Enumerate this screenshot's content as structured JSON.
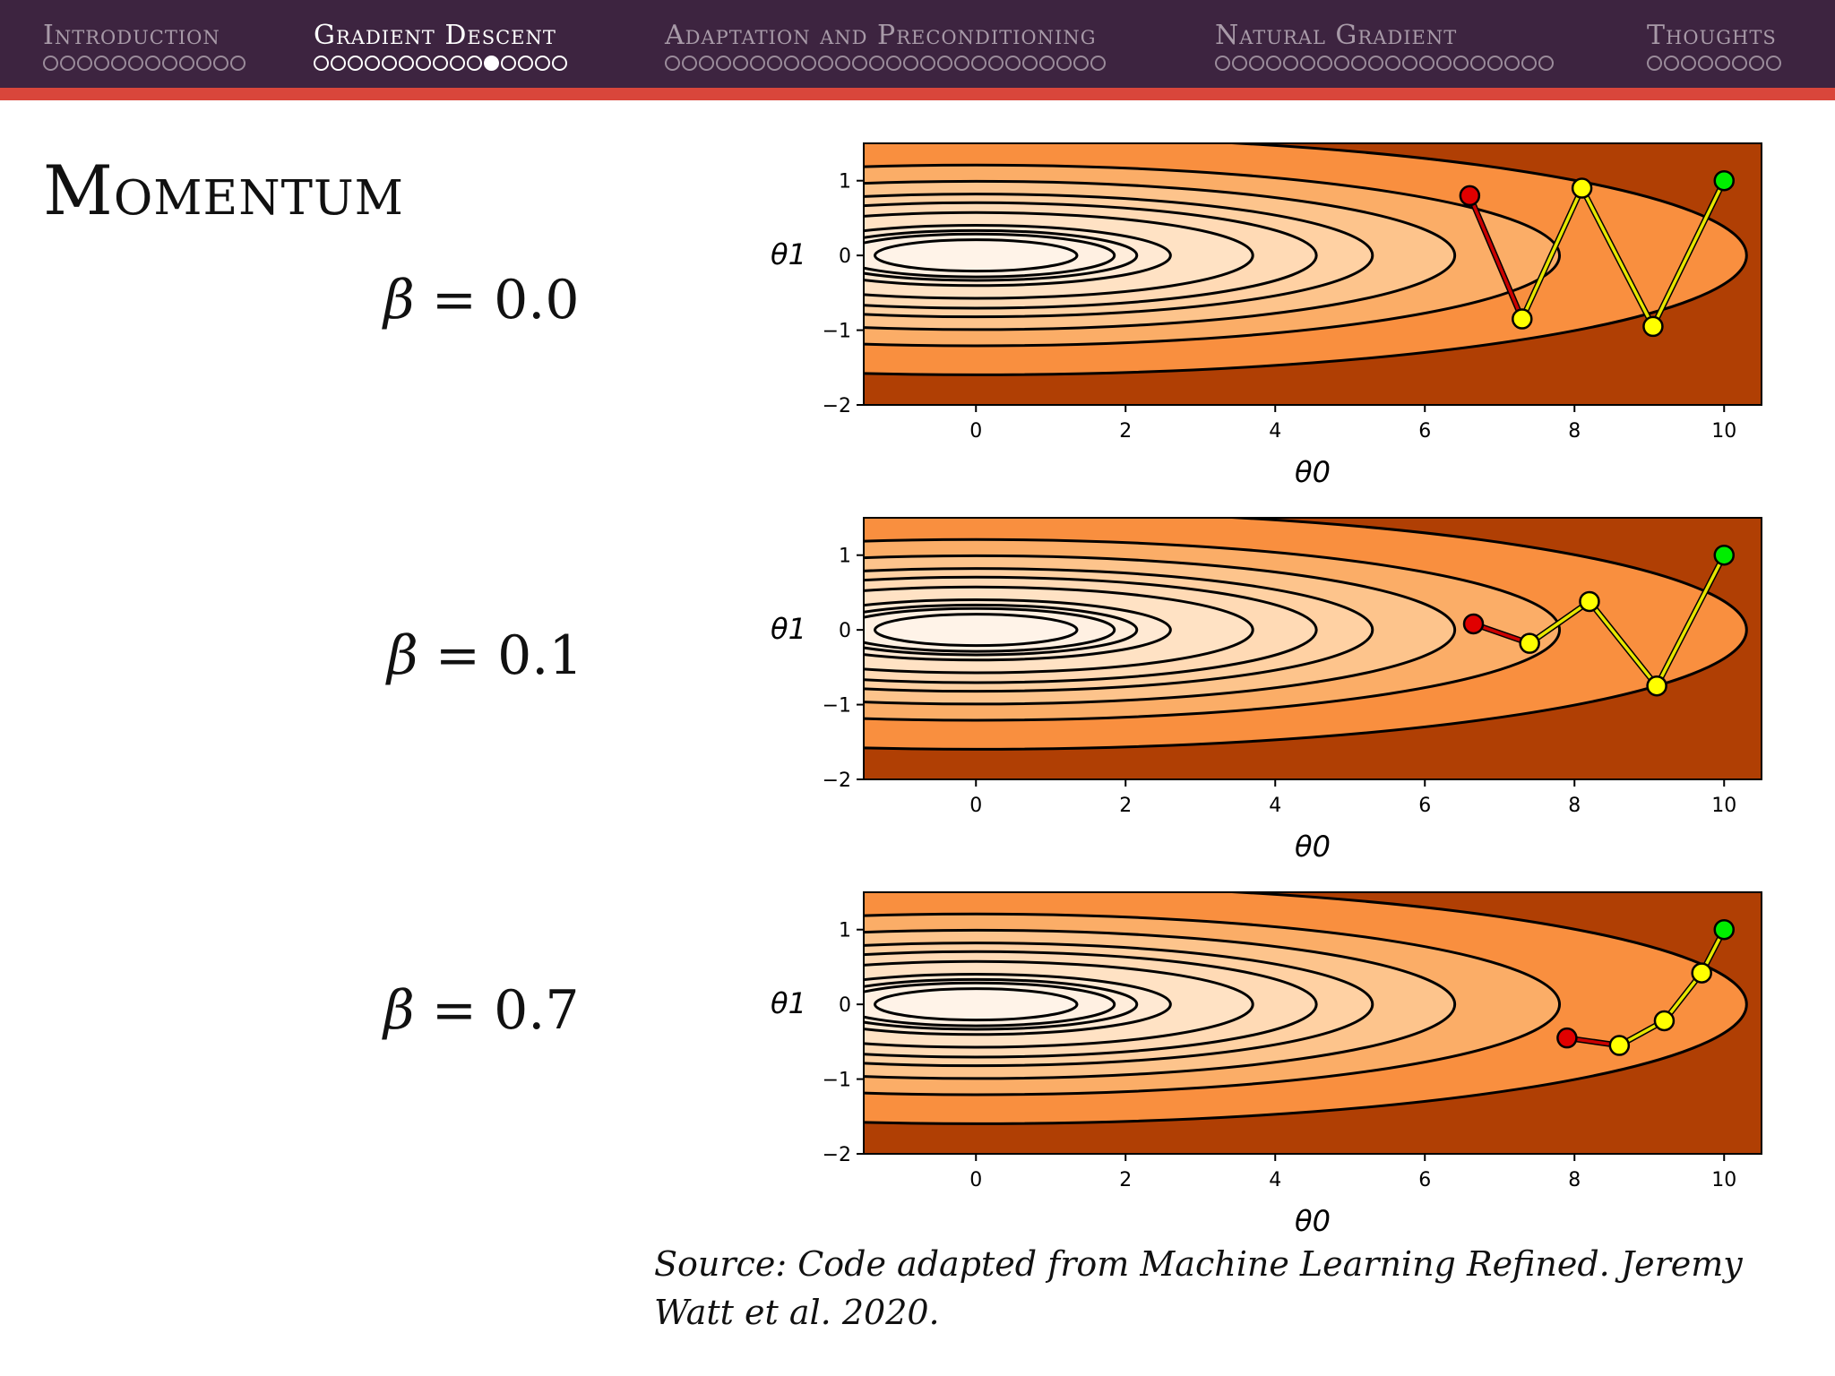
{
  "nav": {
    "sections": [
      {
        "label": "Introduction",
        "dots": 12,
        "current": -1,
        "active": false
      },
      {
        "label": "Gradient Descent",
        "dots": 15,
        "current": 10,
        "active": true
      },
      {
        "label": "Adaptation and Preconditioning",
        "dots": 26,
        "current": -1,
        "active": false
      },
      {
        "label": "Natural Gradient",
        "dots": 20,
        "current": -1,
        "active": false
      },
      {
        "label": "Thoughts",
        "dots": 8,
        "current": -1,
        "active": false
      }
    ]
  },
  "slide": {
    "title": "Momentum",
    "betas": [
      {
        "sym": "β",
        "text": " = 0.0"
      },
      {
        "sym": "β",
        "text": " = 0.1"
      },
      {
        "sym": "β",
        "text": " = 0.7"
      }
    ],
    "source_text": "Source: Code adapted from Machine Learning Refined. Jeremy Watt et al. 2020."
  },
  "colors": {
    "nav_bg": "#3d2440",
    "accent": "#d9463b",
    "path_start": "#e00000",
    "path_mid": "#ffff00",
    "path_end": "#00ee00",
    "path_line_first": "#cc0000",
    "path_line": "#e6e600"
  },
  "chart_data": [
    {
      "type": "line",
      "xlabel": "θ0",
      "ylabel": "θ1",
      "xlim": [
        -1.5,
        10.5
      ],
      "ylim": [
        -2,
        1.5
      ],
      "xticks": [
        0,
        2,
        4,
        6,
        8,
        10
      ],
      "yticks": [
        -2,
        -1,
        0,
        1
      ],
      "background": "contour",
      "contour_levels_x_semi_axis": [
        1.35,
        1.85,
        2.15,
        2.6,
        3.7,
        4.55,
        5.3,
        6.4,
        7.8,
        10.3
      ],
      "contour_aspect": 0.155,
      "path": {
        "x": [
          10,
          9.05,
          8.1,
          7.3,
          6.6
        ],
        "y": [
          1.0,
          -0.95,
          0.9,
          -0.85,
          0.8
        ]
      }
    },
    {
      "type": "line",
      "xlabel": "θ0",
      "ylabel": "θ1",
      "xlim": [
        -1.5,
        10.5
      ],
      "ylim": [
        -2,
        1.5
      ],
      "xticks": [
        0,
        2,
        4,
        6,
        8,
        10
      ],
      "yticks": [
        -2,
        -1,
        0,
        1
      ],
      "background": "contour",
      "contour_levels_x_semi_axis": [
        1.35,
        1.85,
        2.15,
        2.6,
        3.7,
        4.55,
        5.3,
        6.4,
        7.8,
        10.3
      ],
      "contour_aspect": 0.155,
      "path": {
        "x": [
          10,
          9.1,
          8.2,
          7.4,
          6.65
        ],
        "y": [
          1.0,
          -0.75,
          0.38,
          -0.18,
          0.08
        ]
      }
    },
    {
      "type": "line",
      "xlabel": "θ0",
      "ylabel": "θ1",
      "xlim": [
        -1.5,
        10.5
      ],
      "ylim": [
        -2,
        1.5
      ],
      "xticks": [
        0,
        2,
        4,
        6,
        8,
        10
      ],
      "yticks": [
        -2,
        -1,
        0,
        1
      ],
      "background": "contour",
      "contour_levels_x_semi_axis": [
        1.35,
        1.85,
        2.15,
        2.6,
        3.7,
        4.55,
        5.3,
        6.4,
        7.8,
        10.3
      ],
      "contour_aspect": 0.155,
      "path": {
        "x": [
          10,
          9.7,
          9.2,
          8.6,
          7.9
        ],
        "y": [
          1.0,
          0.42,
          -0.22,
          -0.55,
          -0.45
        ]
      }
    }
  ]
}
